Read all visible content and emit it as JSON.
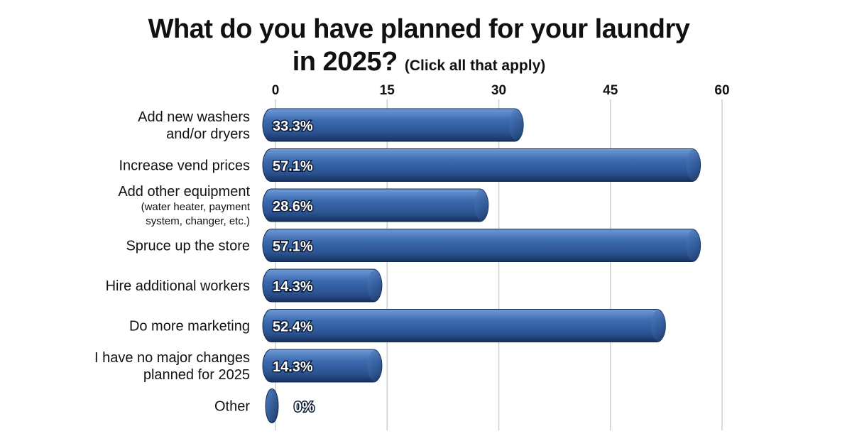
{
  "chart_data": {
    "type": "bar",
    "orientation": "horizontal",
    "title": "What do you have planned for your laundry in 2025?",
    "subtitle": "(Click all that apply)",
    "categories": [
      [
        "Add new washers",
        "and/or dryers"
      ],
      [
        "Increase vend prices"
      ],
      [
        "Add other equipment",
        "(water heater, payment",
        "system, changer, etc.)"
      ],
      [
        "Spruce up the store"
      ],
      [
        "Hire additional workers"
      ],
      [
        "Do more marketing"
      ],
      [
        "I have no major changes",
        "planned for 2025"
      ],
      [
        "Other"
      ]
    ],
    "values": [
      33.3,
      57.1,
      28.6,
      57.1,
      14.3,
      52.4,
      14.3,
      0
    ],
    "data_labels": [
      "33.3%",
      "57.1%",
      "28.6%",
      "57.1%",
      "14.3%",
      "52.4%",
      "14.3%",
      "0%"
    ],
    "xlim": [
      0,
      60
    ],
    "xticks": [
      0,
      15,
      30,
      45,
      60
    ],
    "xtick_labels": [
      "0",
      "15",
      "30",
      "45",
      "60"
    ],
    "xaxis_position": "top",
    "grid": true,
    "legend": "none",
    "colors": {
      "bar": "#2f5c9e",
      "bar_highlight": "#6f9ad6",
      "bar_shadow": "#16315e",
      "grid": "#cfcfcf",
      "label_outline": "#0d1a33"
    }
  }
}
